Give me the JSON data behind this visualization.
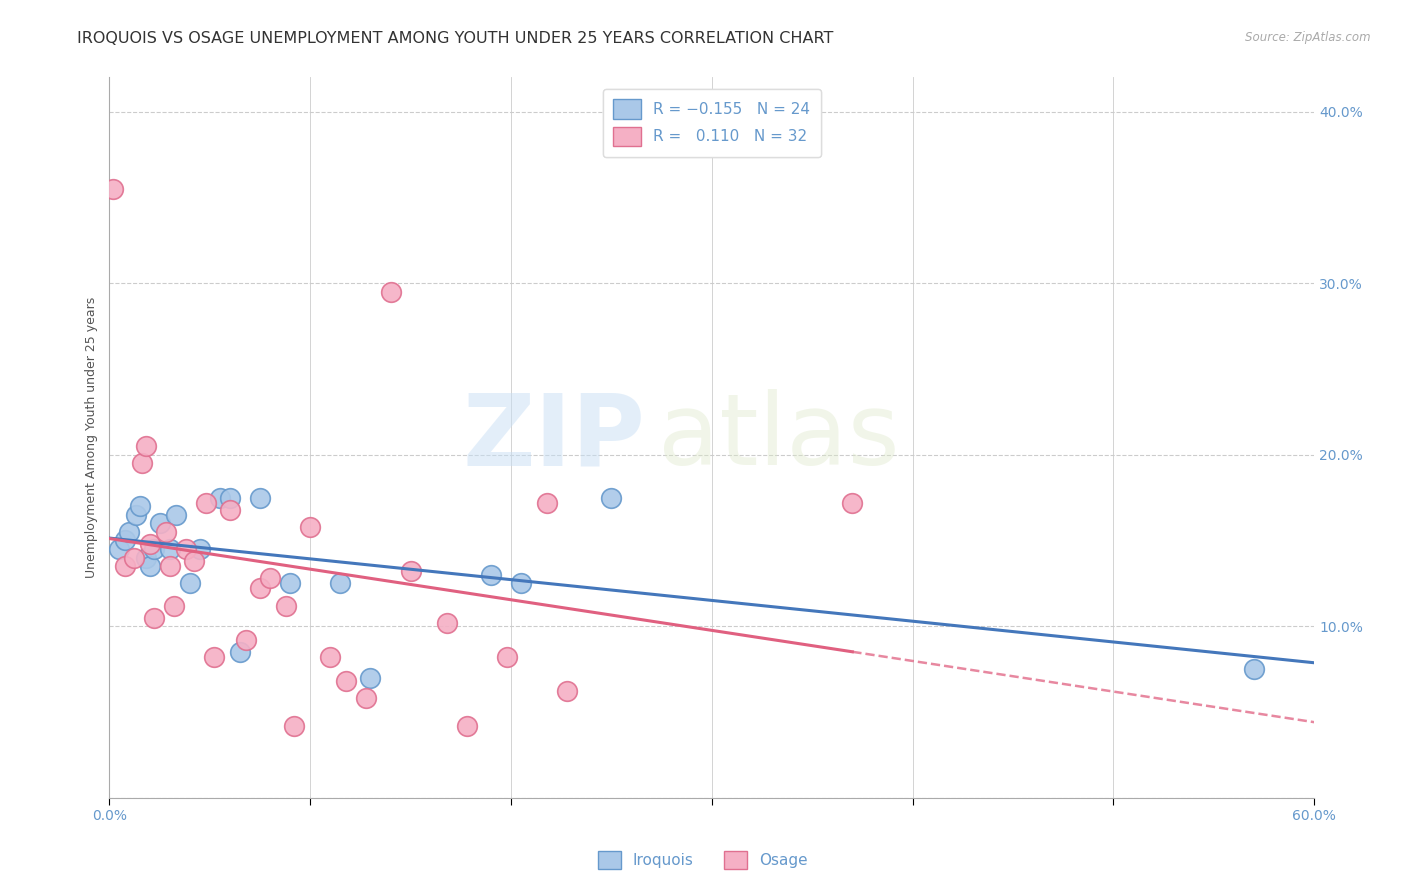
{
  "title": "IROQUOIS VS OSAGE UNEMPLOYMENT AMONG YOUTH UNDER 25 YEARS CORRELATION CHART",
  "source": "Source: ZipAtlas.com",
  "ylabel": "Unemployment Among Youth under 25 years",
  "xlim": [
    0,
    0.6
  ],
  "ylim": [
    0,
    0.42
  ],
  "xticks": [
    0.0,
    0.1,
    0.2,
    0.3,
    0.4,
    0.5,
    0.6
  ],
  "xticklabels_shown": [
    "0.0%",
    "",
    "",
    "",
    "",
    "",
    "60.0%"
  ],
  "yticks": [
    0.0,
    0.1,
    0.2,
    0.3,
    0.4
  ],
  "yticklabels": [
    "",
    "10.0%",
    "20.0%",
    "30.0%",
    "40.0%"
  ],
  "iroquois_color": "#aac8e8",
  "osage_color": "#f5b0c5",
  "iroquois_edge": "#6699cc",
  "osage_edge": "#e07090",
  "trend_iroquois_color": "#4477bb",
  "trend_osage_color": "#e06080",
  "R_iroquois": -0.155,
  "N_iroquois": 24,
  "R_osage": 0.11,
  "N_osage": 32,
  "legend_label_iroquois": "Iroquois",
  "legend_label_osage": "Osage",
  "iroquois_x": [
    0.005,
    0.008,
    0.01,
    0.013,
    0.015,
    0.018,
    0.02,
    0.022,
    0.025,
    0.03,
    0.033,
    0.04,
    0.045,
    0.055,
    0.06,
    0.065,
    0.075,
    0.09,
    0.115,
    0.13,
    0.19,
    0.205,
    0.25,
    0.57
  ],
  "iroquois_y": [
    0.145,
    0.15,
    0.155,
    0.165,
    0.17,
    0.14,
    0.135,
    0.145,
    0.16,
    0.145,
    0.165,
    0.125,
    0.145,
    0.175,
    0.175,
    0.085,
    0.175,
    0.125,
    0.125,
    0.07,
    0.13,
    0.125,
    0.175,
    0.075
  ],
  "osage_x": [
    0.002,
    0.008,
    0.012,
    0.016,
    0.018,
    0.02,
    0.022,
    0.028,
    0.03,
    0.032,
    0.038,
    0.042,
    0.048,
    0.052,
    0.06,
    0.068,
    0.075,
    0.08,
    0.088,
    0.092,
    0.1,
    0.11,
    0.118,
    0.128,
    0.14,
    0.15,
    0.168,
    0.178,
    0.198,
    0.218,
    0.228,
    0.37
  ],
  "osage_y": [
    0.355,
    0.135,
    0.14,
    0.195,
    0.205,
    0.148,
    0.105,
    0.155,
    0.135,
    0.112,
    0.145,
    0.138,
    0.172,
    0.082,
    0.168,
    0.092,
    0.122,
    0.128,
    0.112,
    0.042,
    0.158,
    0.082,
    0.068,
    0.058,
    0.295,
    0.132,
    0.102,
    0.042,
    0.082,
    0.172,
    0.062,
    0.172
  ],
  "background_color": "#ffffff",
  "grid_color": "#cccccc",
  "watermark_zip": "ZIP",
  "watermark_atlas": "atlas",
  "title_fontsize": 11.5,
  "axis_label_fontsize": 9,
  "tick_fontsize": 10,
  "legend_fontsize": 11,
  "tick_color": "#6699cc"
}
